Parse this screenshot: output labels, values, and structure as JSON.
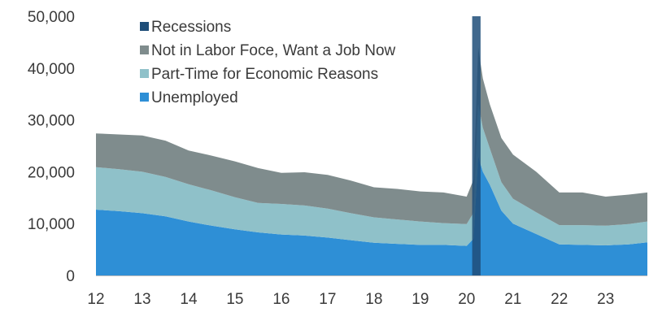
{
  "chart_data": {
    "type": "area",
    "stacked": true,
    "title": "",
    "xlabel": "",
    "ylabel": "",
    "ylim": [
      0,
      50000
    ],
    "y_ticks": [
      "0",
      "10,000",
      "20,000",
      "30,000",
      "40,000",
      "50,000"
    ],
    "y_tick_values": [
      0,
      10000,
      20000,
      30000,
      40000,
      50000
    ],
    "x_ticks": [
      "12",
      "13",
      "14",
      "15",
      "16",
      "17",
      "18",
      "19",
      "20",
      "21",
      "22",
      "23"
    ],
    "x_tick_values": [
      2012,
      2013,
      2014,
      2015,
      2016,
      2017,
      2018,
      2019,
      2020,
      2021,
      2022,
      2023
    ],
    "xlim": [
      2012,
      2023.9
    ],
    "grid": false,
    "legend_position": "top-left",
    "legend": [
      {
        "label": "Recessions",
        "color": "#1f4e79"
      },
      {
        "label": "Not in Labor Foce, Want a Job Now",
        "color": "#7f8c8d"
      },
      {
        "label": "Part-Time for Economic Reasons",
        "color": "#8fc1c9"
      },
      {
        "label": "Unemployed",
        "color": "#2e8fd6"
      }
    ],
    "x": [
      2012.0,
      2012.5,
      2013.0,
      2013.5,
      2014.0,
      2014.5,
      2015.0,
      2015.5,
      2016.0,
      2016.5,
      2017.0,
      2017.5,
      2018.0,
      2018.5,
      2019.0,
      2019.5,
      2020.0,
      2020.15,
      2020.25,
      2020.35,
      2020.5,
      2020.75,
      2021.0,
      2021.5,
      2022.0,
      2022.5,
      2023.0,
      2023.5,
      2023.9
    ],
    "series": [
      {
        "name": "Unemployed",
        "values": [
          12700,
          12400,
          12000,
          11400,
          10400,
          9600,
          8900,
          8300,
          7900,
          7700,
          7300,
          6800,
          6300,
          6100,
          5900,
          5900,
          5700,
          7100,
          23000,
          20000,
          17500,
          12500,
          10000,
          8000,
          6000,
          5900,
          5800,
          6000,
          6400
        ]
      },
      {
        "name": "Part-Time for Economic Reasons",
        "values": [
          8200,
          8100,
          8000,
          7600,
          7200,
          6800,
          6200,
          5700,
          5900,
          5800,
          5600,
          5200,
          4900,
          4700,
          4500,
          4200,
          4200,
          5000,
          10000,
          8500,
          7000,
          5500,
          4800,
          4200,
          3700,
          3800,
          3800,
          3900,
          4000
        ]
      },
      {
        "name": "Not in Labor Foce, Want a Job Now",
        "values": [
          6500,
          6700,
          7000,
          7000,
          6500,
          6700,
          6900,
          6700,
          6000,
          6400,
          6500,
          6300,
          5800,
          5900,
          5800,
          5900,
          5300,
          6400,
          11000,
          9500,
          8500,
          8500,
          8500,
          7800,
          6300,
          6300,
          5600,
          5700,
          5600
        ]
      }
    ],
    "recessions": [
      [
        2020.12,
        2020.3
      ]
    ]
  }
}
